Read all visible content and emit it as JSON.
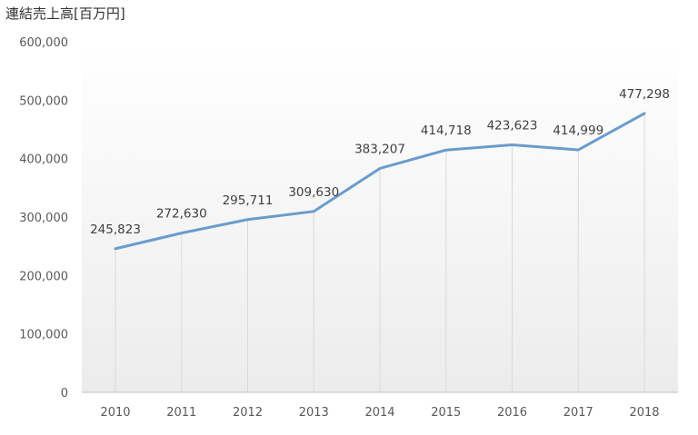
{
  "chart_data": {
    "type": "line",
    "title": "連結売上高[百万円]",
    "categories": [
      "2010",
      "2011",
      "2012",
      "2013",
      "2014",
      "2015",
      "2016",
      "2017",
      "2018"
    ],
    "series": [
      {
        "values": [
          245823,
          272630,
          295711,
          309630,
          383207,
          414718,
          423623,
          414999,
          477298
        ]
      }
    ],
    "data_labels": [
      "245,823",
      "272,630",
      "295,711",
      "309,630",
      "383,207",
      "414,718",
      "423,623",
      "414,999",
      "477,298"
    ],
    "y_ticks": [
      "0",
      "100,000",
      "200,000",
      "300,000",
      "400,000",
      "500,000",
      "600,000"
    ],
    "ylim": [
      0,
      600000
    ],
    "grid": "vertical drop lines at each category",
    "legend": "none",
    "colors": {
      "line": "#6a9ccb",
      "grid": "#d9d9d9",
      "axis": "#bfbfbf",
      "plot_bg_bottom": "#ececec"
    }
  }
}
